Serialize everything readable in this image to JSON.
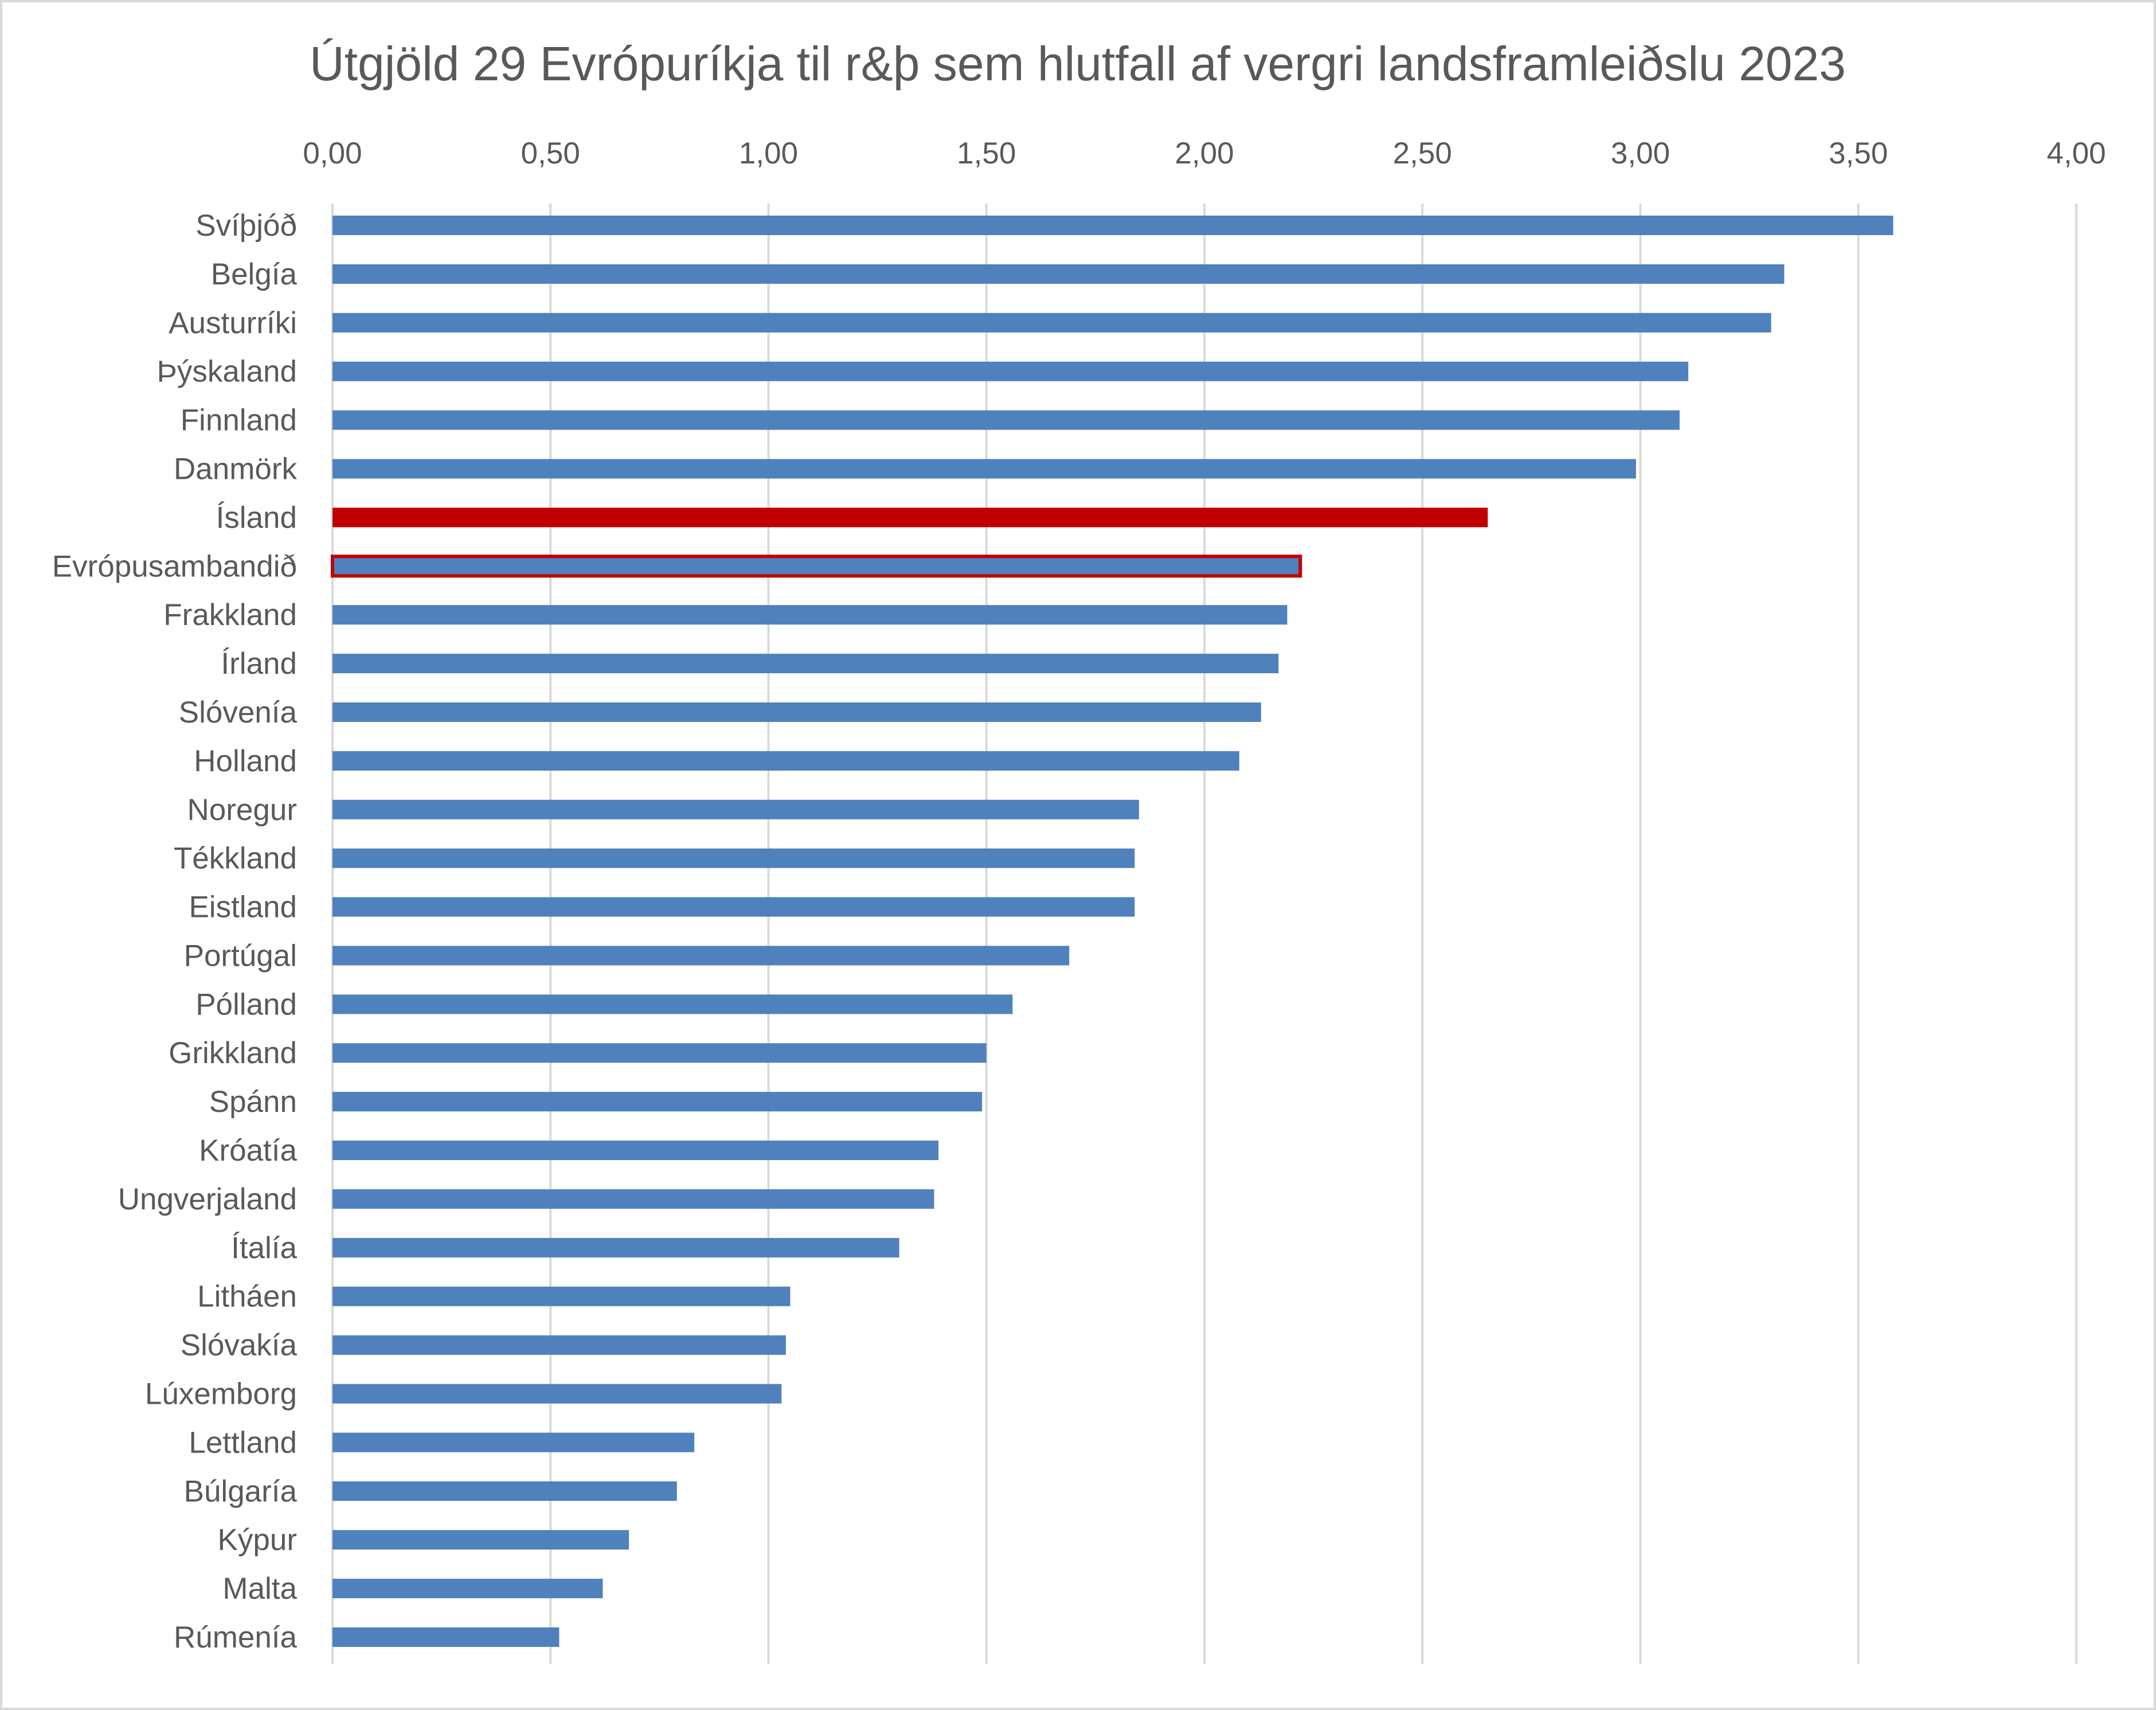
{
  "chart_data": {
    "type": "bar",
    "orientation": "horizontal",
    "title": "Útgjöld 29 Evrópuríkja til r&þ sem hlutfall af vergri landsframleiðslu 2023",
    "xlabel": "",
    "ylabel": "",
    "xlim": [
      0,
      4
    ],
    "x_ticks": [
      "0,00",
      "0,50",
      "1,00",
      "1,50",
      "2,00",
      "2,50",
      "3,00",
      "3,50",
      "4,00"
    ],
    "x_axis_position": "top",
    "grid": true,
    "legend": "none",
    "categories": [
      "Svíþjóð",
      "Belgía",
      "Austurríki",
      "Þýskaland",
      "Finnland",
      "Danmörk",
      "Ísland",
      "Evrópusambandið",
      "Frakkland",
      "Írland",
      "Slóvenía",
      "Holland",
      "Noregur",
      "Tékkland",
      "Eistland",
      "Portúgal",
      "Pólland",
      "Grikkland",
      "Spánn",
      "Króatía",
      "Ungverjaland",
      "Ítalía",
      "Litháen",
      "Slóvakía",
      "Lúxemborg",
      "Lettland",
      "Búlgaría",
      "Kýpur",
      "Malta",
      "Rúmenía"
    ],
    "values": [
      3.58,
      3.33,
      3.3,
      3.11,
      3.09,
      2.99,
      2.65,
      2.22,
      2.19,
      2.17,
      2.13,
      2.08,
      1.85,
      1.84,
      1.84,
      1.69,
      1.56,
      1.5,
      1.49,
      1.39,
      1.38,
      1.3,
      1.05,
      1.04,
      1.03,
      0.83,
      0.79,
      0.68,
      0.62,
      0.52
    ],
    "colors": {
      "default": "#4f81bd",
      "highlight": "#c00000",
      "gridline": "#d9d9d9",
      "text": "#595959"
    },
    "highlight": {
      "Ísland": "filled-red",
      "Evrópusambandið": "red-outline"
    }
  }
}
